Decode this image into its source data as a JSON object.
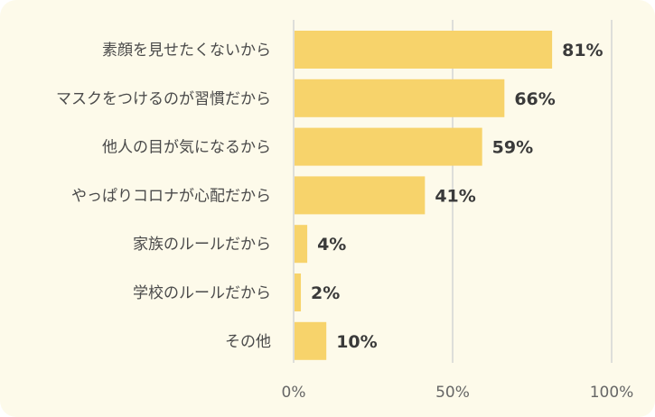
{
  "chart_data": {
    "type": "bar",
    "orientation": "horizontal",
    "categories": [
      "素顔を見せたくないから",
      "マスクをつけるのが習慣だから",
      "他人の目が気になるから",
      "やっぱりコロナが心配だから",
      "家族のルールだから",
      "学校のルールだから",
      "その他"
    ],
    "values": [
      81,
      66,
      59,
      41,
      4,
      2,
      10
    ],
    "value_labels": [
      "81%",
      "66%",
      "59%",
      "41%",
      "4%",
      "2%",
      "10%"
    ],
    "xlim": [
      0,
      100
    ],
    "x_ticks": [
      0,
      50,
      100
    ],
    "x_tick_labels": [
      "0%",
      "50%",
      "100%"
    ],
    "grid": true,
    "bar_color": "#f7d36b",
    "background_color": "#fdfaea",
    "grid_color": "#d4d4d4"
  }
}
